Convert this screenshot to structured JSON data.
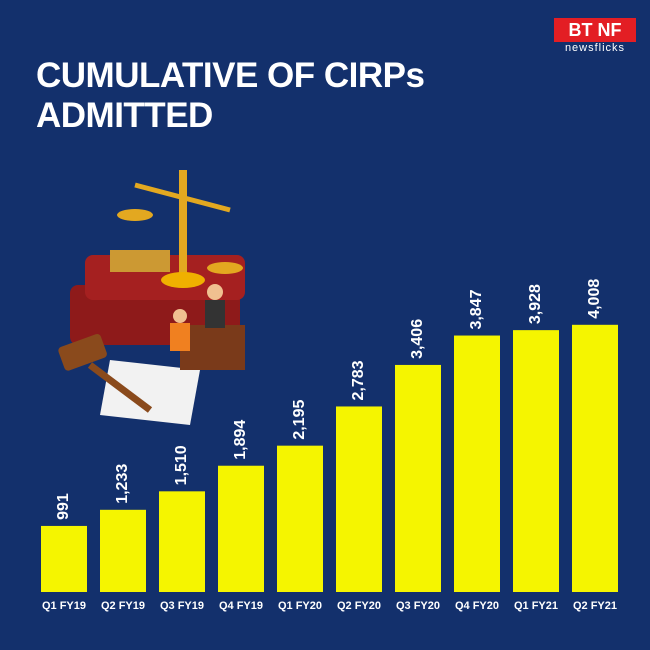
{
  "logo": {
    "mark": "BT NF",
    "tagline": "newsflicks"
  },
  "chart_data": {
    "type": "bar",
    "title": "CUMULATIVE OF CIRPs ADMITTED",
    "categories": [
      "Q1 FY19",
      "Q2 FY19",
      "Q3 FY19",
      "Q4 FY19",
      "Q1 FY20",
      "Q2 FY20",
      "Q3 FY20",
      "Q4 FY20",
      "Q1 FY21",
      "Q2 FY21"
    ],
    "values": [
      991,
      1233,
      1510,
      1894,
      2195,
      2783,
      3406,
      3847,
      3928,
      4008
    ],
    "value_labels": [
      "991",
      "1,233",
      "1,510",
      "1,894",
      "2,195",
      "2,783",
      "3,406",
      "3,847",
      "3,928",
      "4,008"
    ],
    "color": "#f5f500",
    "ylim": [
      0,
      4500
    ]
  }
}
